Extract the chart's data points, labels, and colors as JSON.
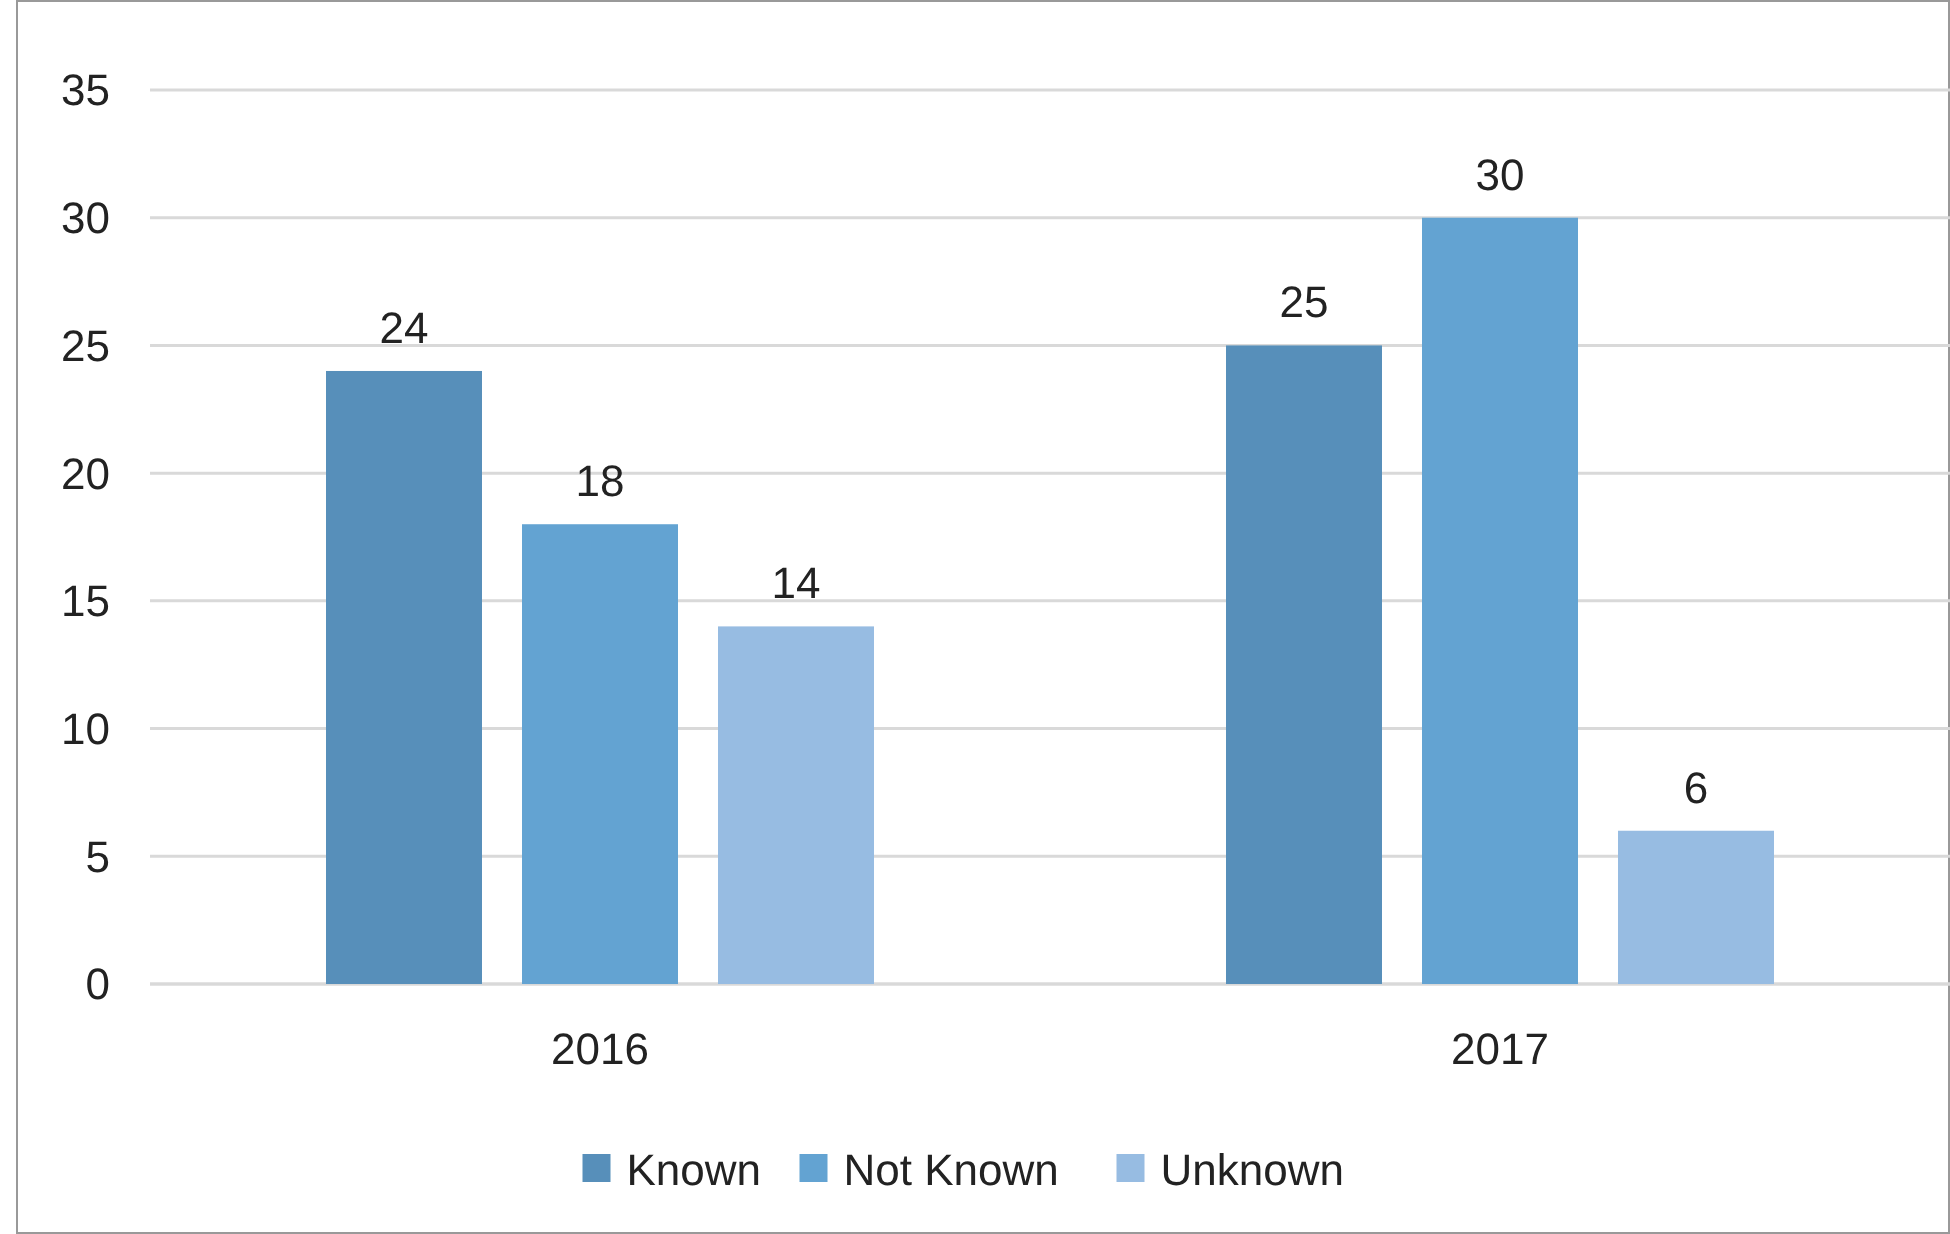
{
  "chart_data": {
    "type": "bar",
    "categories": [
      "2016",
      "2017"
    ],
    "series": [
      {
        "name": "Known",
        "color": "#578fba",
        "values": [
          24,
          25
        ]
      },
      {
        "name": "Not Known",
        "color": "#63a3d2",
        "values": [
          18,
          30
        ]
      },
      {
        "name": "Unknown",
        "color": "#97bce2",
        "values": [
          14,
          6
        ]
      }
    ],
    "ylim": [
      0,
      35
    ],
    "yticks": [
      0,
      5,
      10,
      15,
      20,
      25,
      30,
      35
    ],
    "grid": "y",
    "legend": "bottom",
    "data_labels": true
  }
}
